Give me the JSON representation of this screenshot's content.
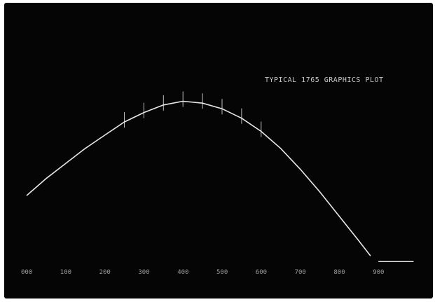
{
  "chart_data": {
    "type": "line",
    "title": "TYPICAL 1765 GRAPHICS PLOT",
    "xlabel": "",
    "ylabel": "",
    "xlim": [
      0,
      1000
    ],
    "ylim": [
      0,
      13
    ],
    "x_ticks": [
      "000",
      "100",
      "200",
      "300",
      "400",
      "500",
      "600",
      "700",
      "800",
      "900"
    ],
    "y_ticks": [
      "",
      "",
      "",
      "",
      "",
      "",
      "",
      "",
      "",
      "",
      "",
      "",
      "",
      ""
    ],
    "grid": false,
    "legend": "none",
    "series": [
      {
        "values": [
          {
            "x": 0,
            "y": 3.6
          },
          {
            "x": 50,
            "y": 4.5
          },
          {
            "x": 100,
            "y": 5.3
          },
          {
            "x": 150,
            "y": 6.1
          },
          {
            "x": 200,
            "y": 6.8
          },
          {
            "x": 250,
            "y": 7.5
          },
          {
            "x": 300,
            "y": 8.0
          },
          {
            "x": 350,
            "y": 8.4
          },
          {
            "x": 400,
            "y": 8.6
          },
          {
            "x": 450,
            "y": 8.5
          },
          {
            "x": 500,
            "y": 8.2
          },
          {
            "x": 550,
            "y": 7.7
          },
          {
            "x": 600,
            "y": 7.0
          },
          {
            "x": 650,
            "y": 6.1
          },
          {
            "x": 700,
            "y": 5.0
          },
          {
            "x": 750,
            "y": 3.8
          },
          {
            "x": 800,
            "y": 2.5
          },
          {
            "x": 850,
            "y": 1.2
          },
          {
            "x": 880,
            "y": 0.4
          }
        ]
      }
    ],
    "markers_x": [
      250,
      300,
      350,
      400,
      450,
      500,
      550,
      600
    ],
    "tail_segment": {
      "x_start": 900,
      "x_end": 990,
      "y": 0.1
    }
  },
  "colors": {
    "background": "#050505",
    "trace": "#e8e8e8",
    "text": "#9a9a9a"
  }
}
